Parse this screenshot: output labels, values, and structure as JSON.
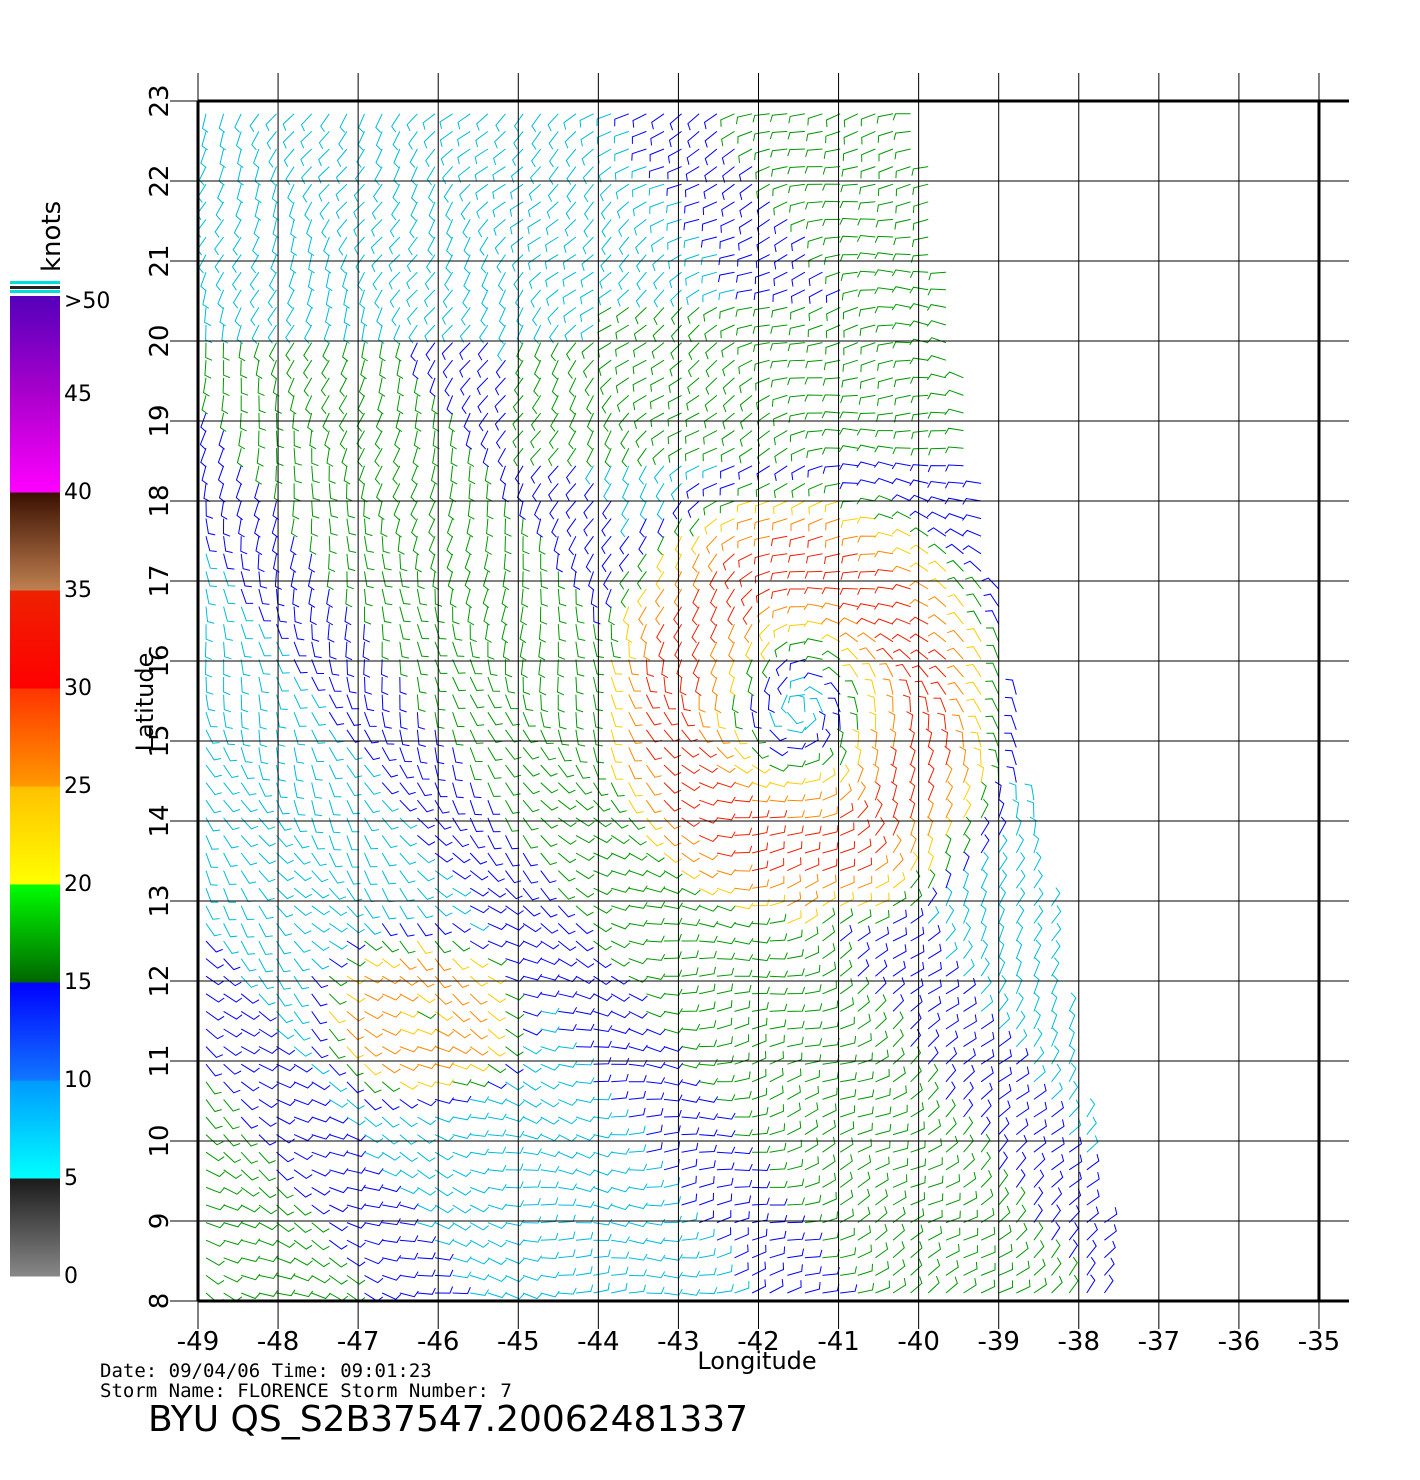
{
  "map": {
    "x_axis_title": "Longitude",
    "y_axis_title": "Latitude",
    "lon_ticks": [
      "-49",
      "-48",
      "-47",
      "-46",
      "-45",
      "-44",
      "-43",
      "-42",
      "-41",
      "-40",
      "-39",
      "-38",
      "-37",
      "-36",
      "-35"
    ],
    "lat_ticks": [
      "8",
      "9",
      "10",
      "11",
      "12",
      "13",
      "14",
      "15",
      "16",
      "17",
      "18",
      "19",
      "20",
      "21",
      "22",
      "23"
    ],
    "lon_range": [
      -49,
      -35
    ],
    "lat_range": [
      8,
      23
    ],
    "grid": true,
    "swath_corners_lonlat": [
      [
        -49,
        23
      ],
      [
        -40,
        23
      ],
      [
        -37.5,
        8
      ],
      [
        -49,
        8
      ]
    ],
    "storm_center_lonlat": [
      -41.5,
      15.4
    ]
  },
  "legend": {
    "units": "knots",
    "labels": [
      ">50",
      "45",
      "40",
      "35",
      "30",
      "25",
      "20",
      "15",
      "10",
      "5",
      "0"
    ],
    "bands": [
      {
        "from_knots": 0,
        "to_knots": 5,
        "colors": [
          "#888888",
          "#1a1a1a"
        ]
      },
      {
        "from_knots": 5,
        "to_knots": 10,
        "colors": [
          "#00ffff",
          "#0099ff"
        ]
      },
      {
        "from_knots": 10,
        "to_knots": 15,
        "colors": [
          "#1177ff",
          "#0000ff"
        ]
      },
      {
        "from_knots": 15,
        "to_knots": 20,
        "colors": [
          "#006600",
          "#00ff00"
        ]
      },
      {
        "from_knots": 20,
        "to_knots": 25,
        "colors": [
          "#ffff00",
          "#ffc000"
        ]
      },
      {
        "from_knots": 25,
        "to_knots": 30,
        "colors": [
          "#ff9900",
          "#ff3300"
        ]
      },
      {
        "from_knots": 30,
        "to_knots": 35,
        "colors": [
          "#ff0000",
          "#ee2200"
        ]
      },
      {
        "from_knots": 35,
        "to_knots": 40,
        "colors": [
          "#c08050",
          "#3a0f00"
        ]
      },
      {
        "from_knots": 40,
        "to_knots": 45,
        "colors": [
          "#ff00ff",
          "#aa00cc"
        ]
      },
      {
        "from_knots": 45,
        "to_knots": 50,
        "colors": [
          "#aa00cc",
          "#5500bb"
        ]
      }
    ]
  },
  "info": {
    "date_line": "Date: 09/04/06   Time: 09:01:23",
    "storm_line": "Storm  Name: FLORENCE   Storm  Number: 7",
    "file_id": "BYU  QS_S2B37547.20062481337"
  }
}
